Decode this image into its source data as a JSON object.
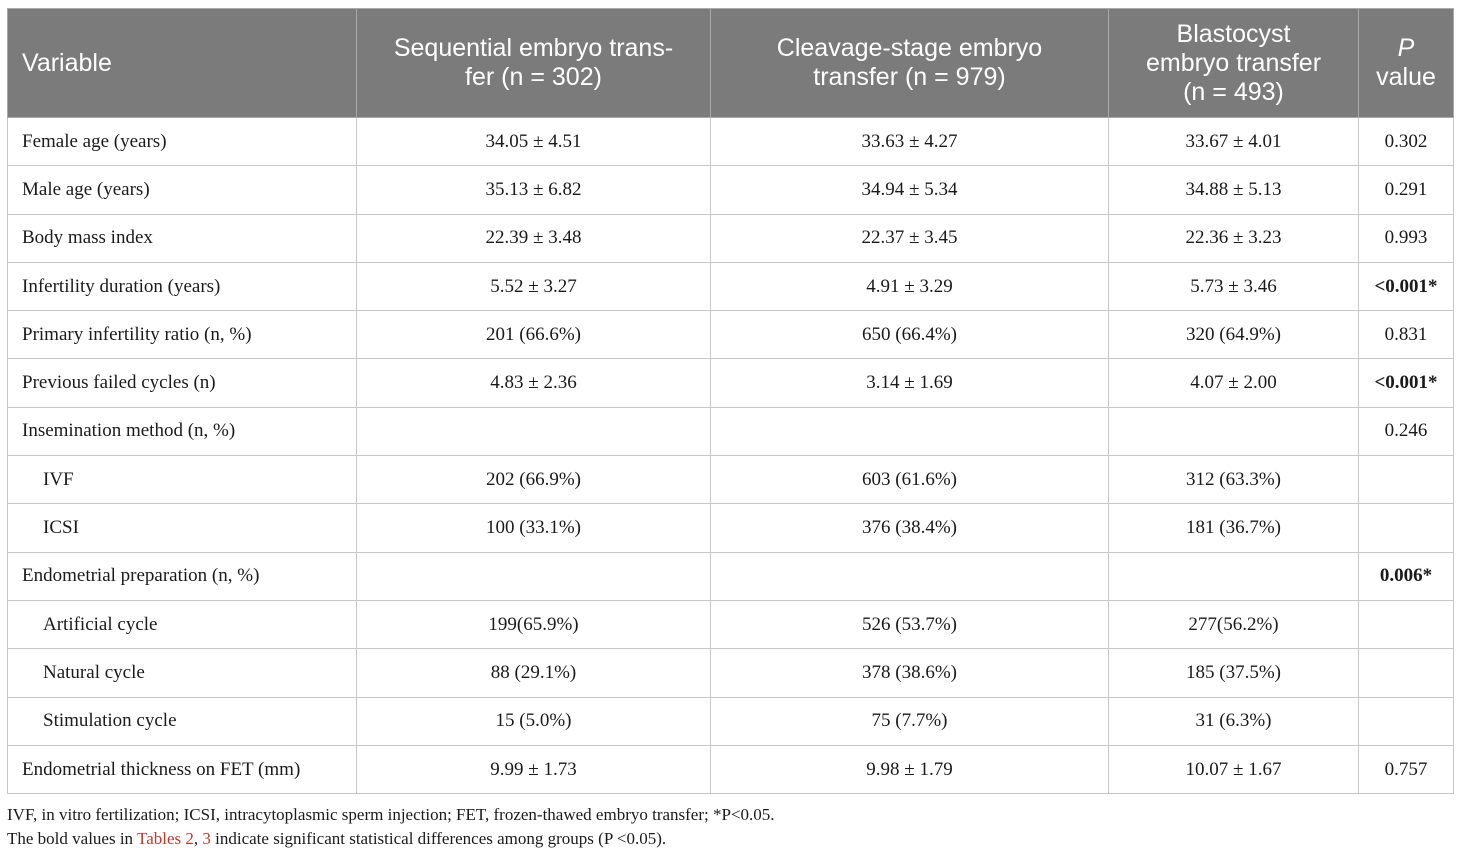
{
  "table": {
    "headers": [
      {
        "line1": "Variable",
        "line2": ""
      },
      {
        "line1": "Sequential embryo trans-",
        "line2": "fer (n = 302)"
      },
      {
        "line1": "Cleavage-stage embryo",
        "line2": "transfer (n = 979)"
      },
      {
        "line1": "Blastocyst",
        "line2": "embryo transfer",
        "line3": "(n = 493)"
      },
      {
        "line1": "P",
        "line2": "value"
      }
    ],
    "rows": [
      {
        "label": "Female age (years)",
        "seq": "34.05 ± 4.51",
        "cleavage": "33.63 ± 4.27",
        "blast": "33.67 ± 4.01",
        "p": "0.302"
      },
      {
        "label": "Male age (years)",
        "seq": "35.13 ± 6.82",
        "cleavage": "34.94 ± 5.34",
        "blast": "34.88 ± 5.13",
        "p": "0.291"
      },
      {
        "label": "Body mass index",
        "seq": "22.39 ± 3.48",
        "cleavage": "22.37 ± 3.45",
        "blast": "22.36 ± 3.23",
        "p": "0.993"
      },
      {
        "label": "Infertility duration (years)",
        "seq": "5.52 ± 3.27",
        "cleavage": "4.91 ± 3.29",
        "blast": "5.73 ± 3.46",
        "p": "<0.001*"
      },
      {
        "label": "Primary infertility ratio (n, %)",
        "seq": "201 (66.6%)",
        "cleavage": "650 (66.4%)",
        "blast": "320 (64.9%)",
        "p": "0.831"
      },
      {
        "label": "Previous failed cycles (n)",
        "seq": "4.83 ± 2.36",
        "cleavage": "3.14 ± 1.69",
        "blast": "4.07 ± 2.00",
        "p": "<0.001*"
      },
      {
        "label": "Insemination method (n, %)",
        "seq": "",
        "cleavage": "",
        "blast": "",
        "p": "0.246"
      },
      {
        "label": "IVF",
        "seq": "202 (66.9%)",
        "cleavage": "603 (61.6%)",
        "blast": "312 (63.3%)",
        "p": ""
      },
      {
        "label": "ICSI",
        "seq": "100 (33.1%)",
        "cleavage": "376 (38.4%)",
        "blast": "181 (36.7%)",
        "p": ""
      },
      {
        "label": "Endometrial preparation (n, %)",
        "seq": "",
        "cleavage": "",
        "blast": "",
        "p": "0.006*"
      },
      {
        "label": "Artificial cycle",
        "seq": "199(65.9%)",
        "cleavage": "526 (53.7%)",
        "blast": "277(56.2%)",
        "p": ""
      },
      {
        "label": "Natural cycle",
        "seq": "88 (29.1%)",
        "cleavage": "378 (38.6%)",
        "blast": "185 (37.5%)",
        "p": ""
      },
      {
        "label": "Stimulation cycle",
        "seq": "15 (5.0%)",
        "cleavage": "75 (7.7%)",
        "blast": "31 (6.3%)",
        "p": ""
      },
      {
        "label": "Endometrial thickness on FET (mm)",
        "seq": "9.99 ± 1.73",
        "cleavage": "9.98 ± 1.79",
        "blast": "10.07 ± 1.67",
        "p": "0.757"
      }
    ]
  },
  "footnotes": {
    "line1": "IVF, in vitro fertilization; ICSI, intracytoplasmic sperm injection; FET, frozen-thawed embryo transfer; *P<0.05.",
    "line2_prefix": "The bold values in ",
    "line2_ref1": "Tables 2",
    "line2_sep": ", ",
    "line2_ref2": "3",
    "line2_suffix": " indicate significant statistical differences among groups (P <0.05)."
  },
  "colors": {
    "header_bg": "#7b7b7b",
    "header_text": "#ffffff",
    "link": "#c0392b"
  }
}
